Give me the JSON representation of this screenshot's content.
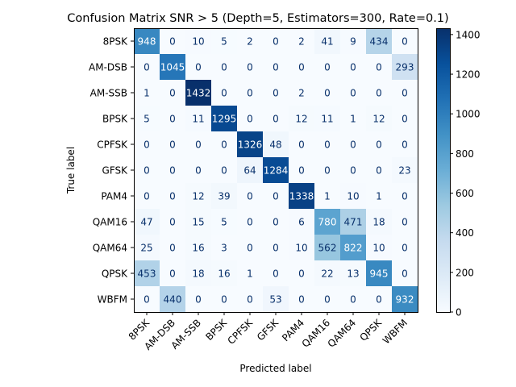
{
  "chart_data": {
    "type": "heatmap",
    "title": "Confusion Matrix SNR > 5 (Depth=5, Estimators=300, Rate=0.1)",
    "xlabel": "Predicted label",
    "ylabel": "True label",
    "labels": [
      "8PSK",
      "AM-DSB",
      "AM-SSB",
      "BPSK",
      "CPFSK",
      "GFSK",
      "PAM4",
      "QAM16",
      "QAM64",
      "QPSK",
      "WBFM"
    ],
    "matrix": [
      [
        948,
        0,
        10,
        5,
        2,
        0,
        2,
        41,
        9,
        434,
        0
      ],
      [
        0,
        1045,
        0,
        0,
        0,
        0,
        0,
        0,
        0,
        0,
        293
      ],
      [
        1,
        0,
        1432,
        0,
        0,
        0,
        2,
        0,
        0,
        0,
        0
      ],
      [
        5,
        0,
        11,
        1295,
        0,
        0,
        12,
        11,
        1,
        12,
        0
      ],
      [
        0,
        0,
        0,
        0,
        1326,
        48,
        0,
        0,
        0,
        0,
        0
      ],
      [
        0,
        0,
        0,
        0,
        64,
        1284,
        0,
        0,
        0,
        0,
        23
      ],
      [
        0,
        0,
        12,
        39,
        0,
        0,
        1338,
        1,
        10,
        1,
        0
      ],
      [
        47,
        0,
        15,
        5,
        0,
        0,
        6,
        780,
        471,
        18,
        0
      ],
      [
        25,
        0,
        16,
        3,
        0,
        0,
        10,
        562,
        822,
        10,
        0
      ],
      [
        453,
        0,
        18,
        16,
        1,
        0,
        0,
        22,
        13,
        945,
        0
      ],
      [
        0,
        440,
        0,
        0,
        0,
        53,
        0,
        0,
        0,
        0,
        932
      ]
    ],
    "colormap": "Blues",
    "vmin": 0,
    "vmax": 1432,
    "colorbar_ticks": [
      "0",
      "200",
      "400",
      "600",
      "800",
      "1000",
      "1200",
      "1400"
    ]
  }
}
